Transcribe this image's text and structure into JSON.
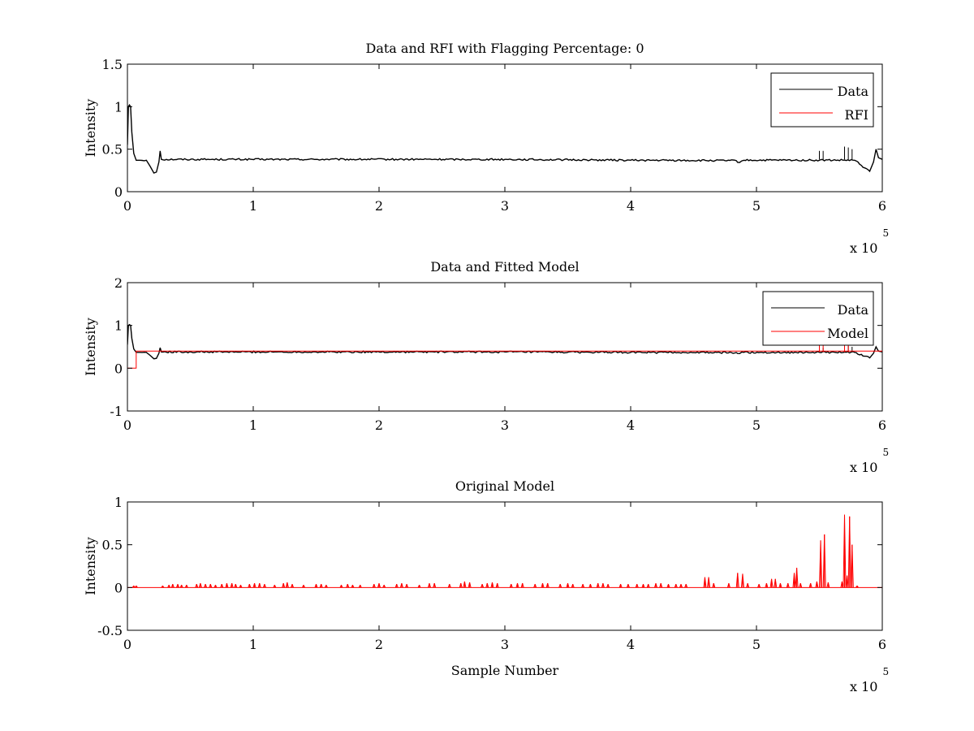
{
  "chart_data": [
    {
      "type": "line",
      "title": "Data and RFI with Flagging Percentage: 0",
      "xlabel": "",
      "ylabel": "Intensity",
      "xlim": [
        0,
        600000
      ],
      "ylim": [
        0,
        1.5
      ],
      "x_ticks": [
        "0",
        "1",
        "2",
        "3",
        "4",
        "5",
        "6"
      ],
      "y_ticks": [
        "0",
        "0.5",
        "1",
        "1.5"
      ],
      "x_exponent": {
        "base": "x 10",
        "power": "5"
      },
      "legend": {
        "placement": "top-right",
        "entries": [
          "Data",
          "RFI"
        ]
      },
      "series": [
        {
          "name": "Data",
          "color": "#000000",
          "points": [
            [
              0,
              0.55
            ],
            [
              800,
              1.0
            ],
            [
              1600,
              1.02
            ],
            [
              2500,
              1.0
            ],
            [
              3500,
              0.7
            ],
            [
              5000,
              0.45
            ],
            [
              7000,
              0.37
            ],
            [
              10000,
              0.37
            ],
            [
              15000,
              0.37
            ],
            [
              18000,
              0.3
            ],
            [
              21000,
              0.22
            ],
            [
              23000,
              0.23
            ],
            [
              25000,
              0.35
            ],
            [
              26000,
              0.48
            ],
            [
              27000,
              0.38
            ],
            [
              60000,
              0.38
            ],
            [
              150000,
              0.38
            ],
            [
              300000,
              0.38
            ],
            [
              400000,
              0.37
            ],
            [
              484000,
              0.365
            ],
            [
              485000,
              0.345
            ],
            [
              490000,
              0.37
            ],
            [
              550000,
              0.37
            ],
            [
              578000,
              0.37
            ],
            [
              586000,
              0.28
            ],
            [
              590000,
              0.24
            ],
            [
              593000,
              0.35
            ],
            [
              595000,
              0.5
            ],
            [
              597000,
              0.4
            ],
            [
              600000,
              0.38
            ]
          ],
          "spikes": [
            [
              550000,
              0.48
            ],
            [
              553000,
              0.48
            ],
            [
              570000,
              0.53
            ],
            [
              573000,
              0.52
            ],
            [
              576000,
              0.5
            ]
          ]
        },
        {
          "name": "RFI",
          "color": "#ff0000",
          "points": []
        }
      ]
    },
    {
      "type": "line",
      "title": "Data and Fitted Model",
      "xlabel": "",
      "ylabel": "Intensity",
      "xlim": [
        0,
        600000
      ],
      "ylim": [
        -1,
        2
      ],
      "x_ticks": [
        "0",
        "1",
        "2",
        "3",
        "4",
        "5",
        "6"
      ],
      "y_ticks": [
        "-1",
        "0",
        "1",
        "2"
      ],
      "x_exponent": {
        "base": "x 10",
        "power": "5"
      },
      "legend": {
        "placement": "top-right",
        "entries": [
          "Data",
          "Model"
        ]
      },
      "series": [
        {
          "name": "Data",
          "color": "#000000",
          "points": [
            [
              0,
              0.55
            ],
            [
              800,
              1.0
            ],
            [
              1600,
              1.02
            ],
            [
              2500,
              1.0
            ],
            [
              3500,
              0.7
            ],
            [
              5000,
              0.45
            ],
            [
              7000,
              0.37
            ],
            [
              10000,
              0.37
            ],
            [
              15000,
              0.37
            ],
            [
              18000,
              0.3
            ],
            [
              21000,
              0.22
            ],
            [
              23000,
              0.23
            ],
            [
              25000,
              0.35
            ],
            [
              26000,
              0.48
            ],
            [
              27000,
              0.38
            ],
            [
              60000,
              0.38
            ],
            [
              150000,
              0.38
            ],
            [
              300000,
              0.38
            ],
            [
              400000,
              0.37
            ],
            [
              484000,
              0.365
            ],
            [
              485000,
              0.345
            ],
            [
              490000,
              0.37
            ],
            [
              550000,
              0.37
            ],
            [
              578000,
              0.37
            ],
            [
              586000,
              0.28
            ],
            [
              590000,
              0.24
            ],
            [
              593000,
              0.35
            ],
            [
              595000,
              0.5
            ],
            [
              597000,
              0.4
            ],
            [
              600000,
              0.38
            ]
          ],
          "spikes": [
            [
              550000,
              0.48
            ],
            [
              553000,
              0.48
            ],
            [
              570000,
              0.53
            ],
            [
              573000,
              0.52
            ],
            [
              576000,
              0.5
            ]
          ]
        },
        {
          "name": "Model",
          "color": "#ff0000",
          "points": [
            [
              0,
              0.0
            ],
            [
              7000,
              0.0
            ],
            [
              7000,
              0.4
            ],
            [
              100000,
              0.4
            ],
            [
              300000,
              0.4
            ],
            [
              500000,
              0.4
            ],
            [
              600000,
              0.4
            ]
          ],
          "spikes": [
            [
              550000,
              0.55
            ],
            [
              553000,
              0.55
            ],
            [
              570000,
              0.62
            ],
            [
              573000,
              0.6
            ]
          ]
        }
      ]
    },
    {
      "type": "line",
      "title": "Original Model",
      "xlabel": "Sample Number",
      "ylabel": "Intensity",
      "xlim": [
        0,
        600000
      ],
      "ylim": [
        -0.5,
        1
      ],
      "x_ticks": [
        "0",
        "1",
        "2",
        "3",
        "4",
        "5",
        "6"
      ],
      "y_ticks": [
        "-0.5",
        "0",
        "0.5",
        "1"
      ],
      "x_exponent": {
        "base": "x 10",
        "power": "5"
      },
      "legend": null,
      "series": [
        {
          "name": "",
          "color": "#ff0000",
          "baseline": 0,
          "spikes": [
            [
              5000,
              0.02
            ],
            [
              7000,
              0.02
            ],
            [
              28000,
              0.02
            ],
            [
              33000,
              0.03
            ],
            [
              36000,
              0.04
            ],
            [
              40000,
              0.04
            ],
            [
              43000,
              0.03
            ],
            [
              47000,
              0.03
            ],
            [
              55000,
              0.04
            ],
            [
              58000,
              0.05
            ],
            [
              62000,
              0.04
            ],
            [
              66000,
              0.04
            ],
            [
              70000,
              0.03
            ],
            [
              75000,
              0.04
            ],
            [
              79000,
              0.05
            ],
            [
              83000,
              0.05
            ],
            [
              86000,
              0.04
            ],
            [
              90000,
              0.03
            ],
            [
              97000,
              0.04
            ],
            [
              101000,
              0.05
            ],
            [
              105000,
              0.05
            ],
            [
              109000,
              0.04
            ],
            [
              117000,
              0.03
            ],
            [
              124000,
              0.05
            ],
            [
              127000,
              0.06
            ],
            [
              131000,
              0.04
            ],
            [
              140000,
              0.03
            ],
            [
              150000,
              0.04
            ],
            [
              154000,
              0.04
            ],
            [
              158000,
              0.03
            ],
            [
              170000,
              0.03
            ],
            [
              175000,
              0.04
            ],
            [
              179000,
              0.03
            ],
            [
              185000,
              0.03
            ],
            [
              196000,
              0.04
            ],
            [
              200000,
              0.05
            ],
            [
              204000,
              0.03
            ],
            [
              214000,
              0.04
            ],
            [
              218000,
              0.05
            ],
            [
              222000,
              0.04
            ],
            [
              232000,
              0.03
            ],
            [
              240000,
              0.05
            ],
            [
              244000,
              0.05
            ],
            [
              256000,
              0.04
            ],
            [
              265000,
              0.05
            ],
            [
              268000,
              0.07
            ],
            [
              272000,
              0.06
            ],
            [
              282000,
              0.04
            ],
            [
              286000,
              0.05
            ],
            [
              290000,
              0.06
            ],
            [
              294000,
              0.05
            ],
            [
              305000,
              0.04
            ],
            [
              310000,
              0.05
            ],
            [
              314000,
              0.05
            ],
            [
              324000,
              0.04
            ],
            [
              330000,
              0.05
            ],
            [
              334000,
              0.05
            ],
            [
              344000,
              0.04
            ],
            [
              350000,
              0.05
            ],
            [
              354000,
              0.04
            ],
            [
              362000,
              0.04
            ],
            [
              368000,
              0.04
            ],
            [
              374000,
              0.05
            ],
            [
              378000,
              0.05
            ],
            [
              382000,
              0.04
            ],
            [
              392000,
              0.04
            ],
            [
              398000,
              0.04
            ],
            [
              405000,
              0.04
            ],
            [
              410000,
              0.04
            ],
            [
              414000,
              0.04
            ],
            [
              420000,
              0.05
            ],
            [
              424000,
              0.05
            ],
            [
              430000,
              0.04
            ],
            [
              436000,
              0.04
            ],
            [
              440000,
              0.04
            ],
            [
              444000,
              0.04
            ],
            [
              459000,
              0.12
            ],
            [
              462000,
              0.12
            ],
            [
              466000,
              0.05
            ],
            [
              478000,
              0.05
            ],
            [
              485000,
              0.17
            ],
            [
              489000,
              0.16
            ],
            [
              493000,
              0.05
            ],
            [
              502000,
              0.04
            ],
            [
              508000,
              0.05
            ],
            [
              512000,
              0.1
            ],
            [
              515000,
              0.1
            ],
            [
              519000,
              0.05
            ],
            [
              525000,
              0.05
            ],
            [
              530000,
              0.17
            ],
            [
              532000,
              0.23
            ],
            [
              535000,
              0.05
            ],
            [
              543000,
              0.05
            ],
            [
              548000,
              0.07
            ],
            [
              551000,
              0.55
            ],
            [
              554000,
              0.62
            ],
            [
              557000,
              0.06
            ],
            [
              568000,
              0.07
            ],
            [
              570000,
              0.85
            ],
            [
              572000,
              0.14
            ],
            [
              574000,
              0.83
            ],
            [
              576000,
              0.5
            ],
            [
              580000,
              0.02
            ]
          ]
        }
      ]
    }
  ]
}
